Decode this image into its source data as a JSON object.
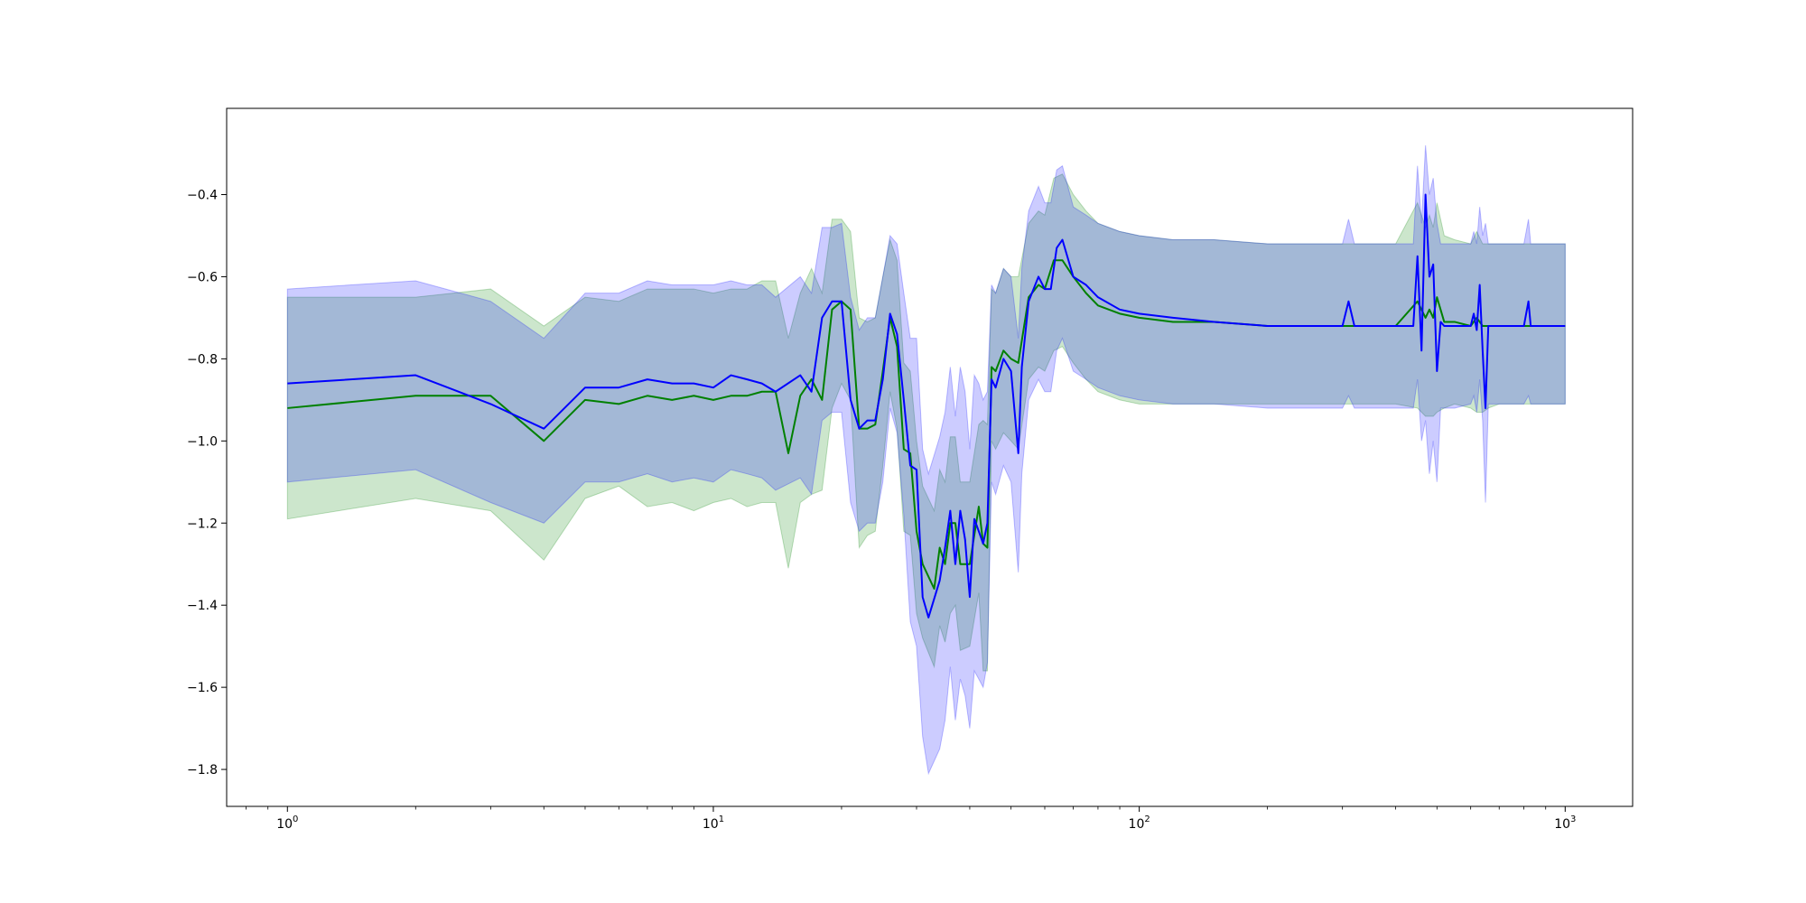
{
  "chart_data": {
    "type": "line",
    "title": "",
    "xlabel": "",
    "ylabel": "",
    "xscale": "log",
    "xlim": [
      0.72,
      1440
    ],
    "ylim": [
      -1.89,
      -0.19
    ],
    "grid": false,
    "legend": "none",
    "x_ticks": [
      {
        "base": "10",
        "exp": "0",
        "value": 1
      },
      {
        "base": "10",
        "exp": "1",
        "value": 10
      },
      {
        "base": "10",
        "exp": "2",
        "value": 100
      },
      {
        "base": "10",
        "exp": "3",
        "value": 1000
      }
    ],
    "y_ticks": [
      {
        "label": "−0.4",
        "value": -0.4
      },
      {
        "label": "−0.6",
        "value": -0.6
      },
      {
        "label": "−0.8",
        "value": -0.8
      },
      {
        "label": "−1.0",
        "value": -1.0
      },
      {
        "label": "−1.2",
        "value": -1.2
      },
      {
        "label": "−1.4",
        "value": -1.4
      },
      {
        "label": "−1.6",
        "value": -1.6
      },
      {
        "label": "−1.8",
        "value": -1.8
      }
    ],
    "series": [
      {
        "color": "#008000",
        "band_color": "#008000",
        "x": [
          1,
          2,
          3,
          4,
          5,
          6,
          7,
          8,
          9,
          10,
          11,
          12,
          13,
          14,
          15,
          16,
          17,
          18,
          19,
          20,
          21,
          22,
          23,
          24,
          25,
          26,
          27,
          28,
          29,
          30,
          31,
          33,
          34,
          35,
          36,
          37,
          38,
          40,
          42,
          43,
          44,
          45,
          46,
          48,
          50,
          52,
          55,
          58,
          60,
          63,
          66,
          70,
          75,
          80,
          90,
          100,
          120,
          150,
          200,
          300,
          400,
          450,
          470,
          480,
          490,
          500,
          520,
          550,
          600,
          620,
          640,
          660,
          700,
          800,
          900,
          1000
        ],
        "y": [
          -0.92,
          -0.89,
          -0.89,
          -1.0,
          -0.9,
          -0.91,
          -0.89,
          -0.9,
          -0.89,
          -0.9,
          -0.89,
          -0.89,
          -0.88,
          -0.88,
          -1.03,
          -0.89,
          -0.85,
          -0.9,
          -0.68,
          -0.66,
          -0.68,
          -0.97,
          -0.97,
          -0.96,
          -0.83,
          -0.7,
          -0.77,
          -1.02,
          -1.03,
          -1.22,
          -1.3,
          -1.36,
          -1.26,
          -1.3,
          -1.2,
          -1.2,
          -1.3,
          -1.3,
          -1.16,
          -1.25,
          -1.26,
          -0.82,
          -0.83,
          -0.78,
          -0.8,
          -0.81,
          -0.65,
          -0.62,
          -0.63,
          -0.56,
          -0.56,
          -0.6,
          -0.64,
          -0.67,
          -0.69,
          -0.7,
          -0.71,
          -0.71,
          -0.72,
          -0.72,
          -0.72,
          -0.66,
          -0.7,
          -0.68,
          -0.7,
          -0.65,
          -0.71,
          -0.71,
          -0.72,
          -0.7,
          -0.72,
          -0.72,
          -0.72,
          -0.72,
          -0.72,
          -0.72
        ],
        "lower": [
          -1.19,
          -1.14,
          -1.17,
          -1.29,
          -1.14,
          -1.11,
          -1.16,
          -1.15,
          -1.17,
          -1.15,
          -1.14,
          -1.16,
          -1.15,
          -1.15,
          -1.31,
          -1.15,
          -1.13,
          -1.12,
          -0.92,
          -0.86,
          -0.9,
          -1.26,
          -1.23,
          -1.22,
          -1.06,
          -0.88,
          -0.97,
          -1.22,
          -1.23,
          -1.42,
          -1.48,
          -1.55,
          -1.45,
          -1.49,
          -1.42,
          -1.4,
          -1.51,
          -1.5,
          -1.37,
          -1.56,
          -1.56,
          -1.0,
          -1.02,
          -0.98,
          -1.0,
          -1.02,
          -0.85,
          -0.82,
          -0.83,
          -0.78,
          -0.77,
          -0.81,
          -0.85,
          -0.88,
          -0.9,
          -0.91,
          -0.91,
          -0.91,
          -0.91,
          -0.91,
          -0.91,
          -0.92,
          -0.94,
          -0.94,
          -0.94,
          -0.93,
          -0.92,
          -0.91,
          -0.92,
          -0.93,
          -0.93,
          -0.92,
          -0.91,
          -0.91,
          -0.91,
          -0.91
        ],
        "upper": [
          -0.65,
          -0.65,
          -0.63,
          -0.72,
          -0.65,
          -0.66,
          -0.63,
          -0.63,
          -0.63,
          -0.64,
          -0.63,
          -0.63,
          -0.61,
          -0.61,
          -0.75,
          -0.64,
          -0.58,
          -0.64,
          -0.46,
          -0.46,
          -0.49,
          -0.7,
          -0.71,
          -0.7,
          -0.6,
          -0.51,
          -0.56,
          -0.81,
          -0.83,
          -1.0,
          -1.11,
          -1.17,
          -1.07,
          -1.1,
          -0.99,
          -0.99,
          -1.1,
          -1.1,
          -0.96,
          -0.95,
          -0.96,
          -0.63,
          -0.64,
          -0.58,
          -0.6,
          -0.6,
          -0.47,
          -0.44,
          -0.45,
          -0.36,
          -0.35,
          -0.4,
          -0.44,
          -0.47,
          -0.49,
          -0.5,
          -0.51,
          -0.51,
          -0.52,
          -0.52,
          -0.52,
          -0.42,
          -0.48,
          -0.45,
          -0.48,
          -0.42,
          -0.5,
          -0.51,
          -0.52,
          -0.49,
          -0.52,
          -0.52,
          -0.52,
          -0.52,
          -0.52,
          -0.52
        ]
      },
      {
        "color": "#0000ff",
        "band_color": "#0000ff",
        "x": [
          1,
          2,
          3,
          4,
          5,
          6,
          7,
          8,
          9,
          10,
          11,
          12,
          13,
          14,
          16,
          17,
          18,
          19,
          20,
          21,
          22,
          23,
          24,
          25,
          26,
          27,
          28,
          29,
          30,
          31,
          32,
          34,
          35,
          36,
          37,
          38,
          39,
          40,
          41,
          42,
          43,
          44,
          45,
          46,
          48,
          50,
          52,
          53,
          55,
          58,
          60,
          62,
          64,
          66,
          70,
          75,
          80,
          90,
          100,
          120,
          150,
          200,
          300,
          310,
          320,
          400,
          440,
          450,
          460,
          470,
          480,
          490,
          500,
          510,
          520,
          550,
          600,
          610,
          620,
          630,
          640,
          650,
          660,
          700,
          800,
          820,
          830,
          900,
          1000
        ],
        "y": [
          -0.86,
          -0.84,
          -0.91,
          -0.97,
          -0.87,
          -0.87,
          -0.85,
          -0.86,
          -0.86,
          -0.87,
          -0.84,
          -0.85,
          -0.86,
          -0.88,
          -0.84,
          -0.88,
          -0.7,
          -0.66,
          -0.66,
          -0.9,
          -0.97,
          -0.95,
          -0.95,
          -0.85,
          -0.69,
          -0.74,
          -0.9,
          -1.06,
          -1.07,
          -1.38,
          -1.43,
          -1.34,
          -1.26,
          -1.17,
          -1.3,
          -1.17,
          -1.24,
          -1.38,
          -1.19,
          -1.22,
          -1.25,
          -1.2,
          -0.85,
          -0.87,
          -0.8,
          -0.83,
          -1.03,
          -0.82,
          -0.66,
          -0.6,
          -0.63,
          -0.63,
          -0.53,
          -0.51,
          -0.6,
          -0.62,
          -0.65,
          -0.68,
          -0.69,
          -0.7,
          -0.71,
          -0.72,
          -0.72,
          -0.66,
          -0.72,
          -0.72,
          -0.72,
          -0.55,
          -0.78,
          -0.4,
          -0.6,
          -0.57,
          -0.83,
          -0.71,
          -0.72,
          -0.72,
          -0.72,
          -0.69,
          -0.73,
          -0.62,
          -0.78,
          -0.92,
          -0.72,
          -0.72,
          -0.72,
          -0.66,
          -0.72,
          -0.72,
          -0.72
        ],
        "lower": [
          -1.1,
          -1.07,
          -1.15,
          -1.2,
          -1.1,
          -1.1,
          -1.08,
          -1.1,
          -1.09,
          -1.1,
          -1.07,
          -1.08,
          -1.09,
          -1.12,
          -1.09,
          -1.13,
          -0.95,
          -0.93,
          -0.93,
          -1.15,
          -1.22,
          -1.2,
          -1.2,
          -1.1,
          -0.92,
          -0.98,
          -1.18,
          -1.44,
          -1.5,
          -1.72,
          -1.81,
          -1.75,
          -1.68,
          -1.55,
          -1.68,
          -1.58,
          -1.62,
          -1.7,
          -1.56,
          -1.58,
          -1.6,
          -1.54,
          -1.1,
          -1.13,
          -1.06,
          -1.1,
          -1.32,
          -1.08,
          -0.9,
          -0.85,
          -0.88,
          -0.88,
          -0.78,
          -0.75,
          -0.83,
          -0.85,
          -0.87,
          -0.89,
          -0.9,
          -0.91,
          -0.91,
          -0.92,
          -0.92,
          -0.89,
          -0.92,
          -0.92,
          -0.92,
          -0.85,
          -1.0,
          -0.95,
          -1.08,
          -1.0,
          -1.1,
          -0.92,
          -0.92,
          -0.92,
          -0.91,
          -0.89,
          -0.93,
          -0.85,
          -0.95,
          -1.15,
          -0.91,
          -0.91,
          -0.91,
          -0.89,
          -0.91,
          -0.91,
          -0.91
        ],
        "upper": [
          -0.63,
          -0.61,
          -0.66,
          -0.75,
          -0.64,
          -0.64,
          -0.61,
          -0.62,
          -0.62,
          -0.62,
          -0.61,
          -0.62,
          -0.62,
          -0.65,
          -0.6,
          -0.64,
          -0.48,
          -0.48,
          -0.47,
          -0.65,
          -0.73,
          -0.7,
          -0.7,
          -0.6,
          -0.5,
          -0.52,
          -0.64,
          -0.75,
          -0.75,
          -1.02,
          -1.08,
          -0.99,
          -0.93,
          -0.82,
          -0.94,
          -0.82,
          -0.88,
          -1.02,
          -0.84,
          -0.86,
          -0.9,
          -0.88,
          -0.62,
          -0.64,
          -0.58,
          -0.6,
          -0.75,
          -0.58,
          -0.44,
          -0.38,
          -0.42,
          -0.42,
          -0.34,
          -0.33,
          -0.43,
          -0.45,
          -0.47,
          -0.49,
          -0.5,
          -0.51,
          -0.51,
          -0.52,
          -0.52,
          -0.46,
          -0.52,
          -0.52,
          -0.52,
          -0.33,
          -0.47,
          -0.28,
          -0.4,
          -0.36,
          -0.47,
          -0.52,
          -0.52,
          -0.52,
          -0.52,
          -0.49,
          -0.52,
          -0.43,
          -0.5,
          -0.47,
          -0.52,
          -0.52,
          -0.52,
          -0.46,
          -0.52,
          -0.52,
          -0.52
        ]
      }
    ]
  }
}
